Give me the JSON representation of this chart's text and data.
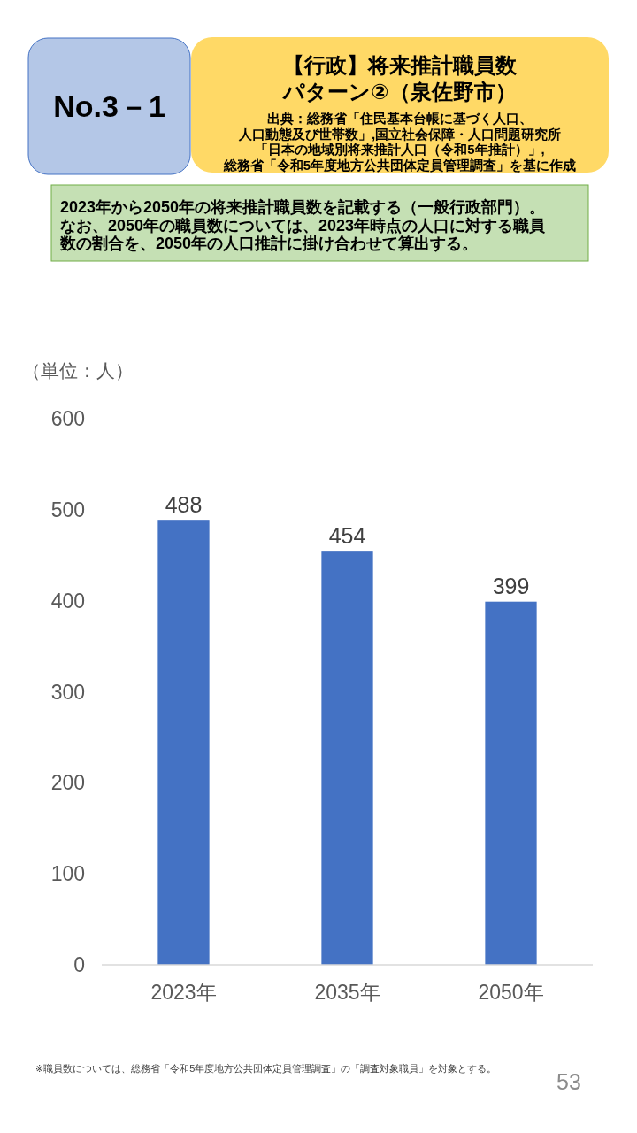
{
  "chart_data": {
    "type": "bar",
    "title": "【行政】将来推計職員数パターン②（泉佐野市）",
    "subtitle": "2023年から2050年の将来推計職員数を記載する（一般行政部門）。なお、2050年の職員数については、2023年時点の人口に対する職員数の割合を、2050年の人口推計に掛け合わせて算出する。",
    "ylabel": "（単位：人）",
    "annotations": [
      "No.3－1",
      "出典：総務省「住民基本台帳に基づく人口、人口動態及び世帯数」,国立社会保障・人口問題研究所「日本の地域別将来推計人口（令和5年推計）」,総務省「令和5年度地方公共団体定員管理調査」を基に作成",
      "※職員数については、総務省「令和5年度地方公共団体定員管理調査」の「調査対象職員」を対象とする。",
      "53"
    ],
    "categories": [
      "2023年",
      "2035年",
      "2050年"
    ],
    "values": [
      488,
      454,
      399
    ],
    "color": "#4472c4",
    "ylim": [
      0,
      600
    ],
    "yticks": [
      0,
      100,
      200,
      300,
      400,
      500,
      600
    ],
    "data_labels": true
  }
}
